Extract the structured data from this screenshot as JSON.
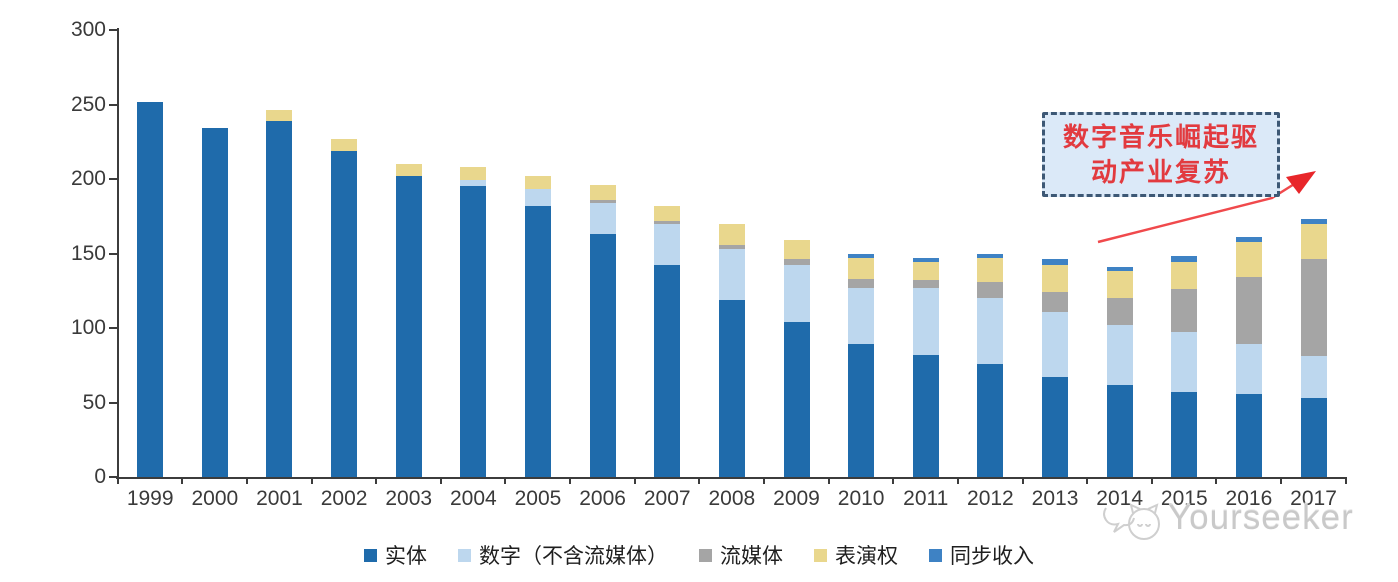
{
  "chart_data": {
    "type": "bar",
    "subtype": "stacked-vertical",
    "categories": [
      "1999",
      "2000",
      "2001",
      "2002",
      "2003",
      "2004",
      "2005",
      "2006",
      "2007",
      "2008",
      "2009",
      "2010",
      "2011",
      "2012",
      "2013",
      "2014",
      "2015",
      "2016",
      "2017"
    ],
    "series": [
      {
        "key": "physical",
        "name": "实体",
        "color": "#1f6bab",
        "values": [
          252,
          234,
          239,
          219,
          202,
          195,
          182,
          163,
          142,
          119,
          104,
          89,
          82,
          76,
          67,
          62,
          57,
          56,
          53
        ]
      },
      {
        "key": "digital",
        "name": "数字（不含流媒体）",
        "color": "#bdd7ee",
        "values": [
          0,
          0,
          0,
          0,
          0,
          4,
          11,
          21,
          28,
          34,
          38,
          38,
          45,
          44,
          44,
          40,
          40,
          33,
          28
        ]
      },
      {
        "key": "streaming",
        "name": "流媒体",
        "color": "#a5a5a5",
        "values": [
          0,
          0,
          0,
          0,
          0,
          0,
          0,
          2,
          2,
          3,
          4,
          6,
          5,
          11,
          13,
          18,
          29,
          45,
          65
        ]
      },
      {
        "key": "performance",
        "name": "表演权",
        "color": "#e9d78d",
        "values": [
          0,
          0,
          7,
          8,
          8,
          9,
          9,
          10,
          10,
          14,
          13,
          14,
          12,
          16,
          18,
          18,
          18,
          24,
          24
        ]
      },
      {
        "key": "sync",
        "name": "同步收入",
        "color": "#3e82c4",
        "values": [
          0,
          0,
          0,
          0,
          0,
          0,
          0,
          0,
          0,
          0,
          0,
          3,
          3,
          3,
          4,
          3,
          4,
          3,
          3
        ]
      }
    ],
    "title": "",
    "xlabel": "",
    "ylabel": "",
    "ylim": [
      0,
      300
    ],
    "yticks": [
      0,
      50,
      100,
      150,
      200,
      250,
      300
    ],
    "grid": false,
    "legend_position": "bottom",
    "annotation": {
      "line1": "数字音乐崛起驱",
      "line2": "动产业复苏",
      "text_color": "#e23a3f",
      "box_fill": "#dbe9f8",
      "box_border_color": "#3d5875",
      "arrow_color": "#f0494c",
      "arrow_points_to": "2017"
    },
    "watermark": {
      "label": "Yourseeker",
      "logo_icon": "yourseeker-logo"
    }
  }
}
